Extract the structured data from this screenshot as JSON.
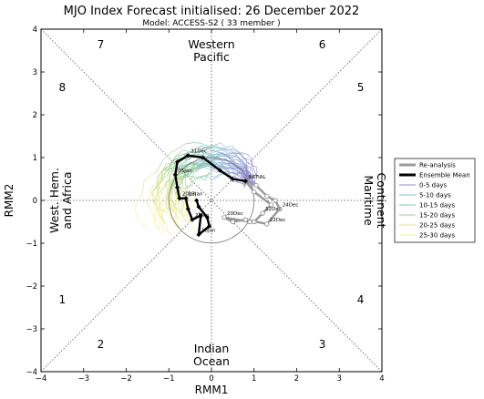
{
  "chart_data": {
    "type": "line",
    "title": "MJO Index Forecast initialised:  26  December 2022",
    "subtitle": "Model: ACCESS-S2 ( 33 member )",
    "xlabel": "RMM1",
    "ylabel": "RMM2",
    "xlim": [
      -4,
      4
    ],
    "ylim": [
      -4,
      4
    ],
    "xticks": [
      "−4",
      "−3",
      "−2",
      "−1",
      "0",
      "1",
      "2",
      "3",
      "4"
    ],
    "yticks": [
      "−4",
      "−3",
      "−2",
      "−1",
      "0",
      "1",
      "2",
      "3",
      "4"
    ],
    "grid": false,
    "legend_position": "right",
    "phases": [
      {
        "label": "1",
        "x": -3.5,
        "y": -2.4
      },
      {
        "label": "2",
        "x": -2.6,
        "y": -3.45
      },
      {
        "label": "3",
        "x": 2.6,
        "y": -3.45
      },
      {
        "label": "4",
        "x": 3.5,
        "y": -2.4
      },
      {
        "label": "5",
        "x": 3.5,
        "y": 2.55
      },
      {
        "label": "6",
        "x": 2.6,
        "y": 3.55
      },
      {
        "label": "7",
        "x": -2.6,
        "y": 3.55
      },
      {
        "label": "8",
        "x": -3.5,
        "y": 2.55
      }
    ],
    "regions": {
      "top": [
        "Western",
        "Pacific"
      ],
      "bottom": [
        "Indian",
        "Ocean"
      ],
      "left": [
        "West. Hem.",
        "and Africa"
      ],
      "right": [
        "Maritime",
        "Continent"
      ]
    },
    "legend": [
      {
        "label": "Re-analysis",
        "color": "#999999",
        "width": 3
      },
      {
        "label": "Ensemble Mean",
        "color": "#000000",
        "width": 3
      },
      {
        "label": "0-5 days",
        "color": "#8e8ed2",
        "width": 1
      },
      {
        "label": "5-10 days",
        "color": "#8fb4dc",
        "width": 1
      },
      {
        "label": "10-15 days",
        "color": "#85c3b4",
        "width": 1
      },
      {
        "label": "15-20 days",
        "color": "#9fd19a",
        "width": 1
      },
      {
        "label": "20-25 days",
        "color": "#d9e493",
        "width": 1
      },
      {
        "label": "25-30 days",
        "color": "#f3ee9a",
        "width": 1
      }
    ],
    "series": [
      {
        "name": "Re-analysis",
        "color": "#999999",
        "points": [
          {
            "x": 0.8,
            "y": 0.45,
            "label": "INITIAL"
          },
          {
            "x": 1.05,
            "y": 0.35
          },
          {
            "x": 1.3,
            "y": 0.1
          },
          {
            "x": 1.5,
            "y": 0.0
          },
          {
            "x": 1.6,
            "y": -0.2,
            "label": "24Dec"
          },
          {
            "x": 1.3,
            "y": -0.55,
            "label": "22Dec"
          },
          {
            "x": 0.8,
            "y": -0.45
          },
          {
            "x": 0.5,
            "y": -0.5
          },
          {
            "x": 0.3,
            "y": -0.4,
            "label": "20Dec"
          },
          {
            "x": 0.9,
            "y": -0.5
          },
          {
            "x": 1.0,
            "y": -0.5
          },
          {
            "x": 1.2,
            "y": -0.3,
            "label": "12Dec"
          },
          {
            "x": 1.4,
            "y": -0.1
          },
          {
            "x": 1.0,
            "y": 0.2
          },
          {
            "x": 0.8,
            "y": 0.45
          }
        ]
      },
      {
        "name": "Ensemble Mean",
        "color": "#000000",
        "points": [
          {
            "x": 0.8,
            "y": 0.45
          },
          {
            "x": 0.5,
            "y": 0.5
          },
          {
            "x": 0.2,
            "y": 0.7
          },
          {
            "x": -0.2,
            "y": 1.0
          },
          {
            "x": -0.55,
            "y": 1.05,
            "label": "31Dec"
          },
          {
            "x": -0.8,
            "y": 0.9
          },
          {
            "x": -0.85,
            "y": 0.6,
            "label": "05Jan"
          },
          {
            "x": -0.8,
            "y": 0.3
          },
          {
            "x": -0.75,
            "y": 0.05,
            "label": "20Jan"
          },
          {
            "x": -0.6,
            "y": 0.05,
            "label": "13Jan"
          },
          {
            "x": -0.55,
            "y": -0.2
          },
          {
            "x": -0.45,
            "y": -0.45,
            "label": "25Jan"
          },
          {
            "x": -0.25,
            "y": -0.35
          },
          {
            "x": -0.3,
            "y": -0.8,
            "label": "18Jan"
          },
          {
            "x": -0.05,
            "y": -0.6
          },
          {
            "x": -0.1,
            "y": -0.4
          },
          {
            "x": -0.3,
            "y": -0.15
          },
          {
            "x": -0.35,
            "y": 0.0
          }
        ]
      }
    ]
  }
}
